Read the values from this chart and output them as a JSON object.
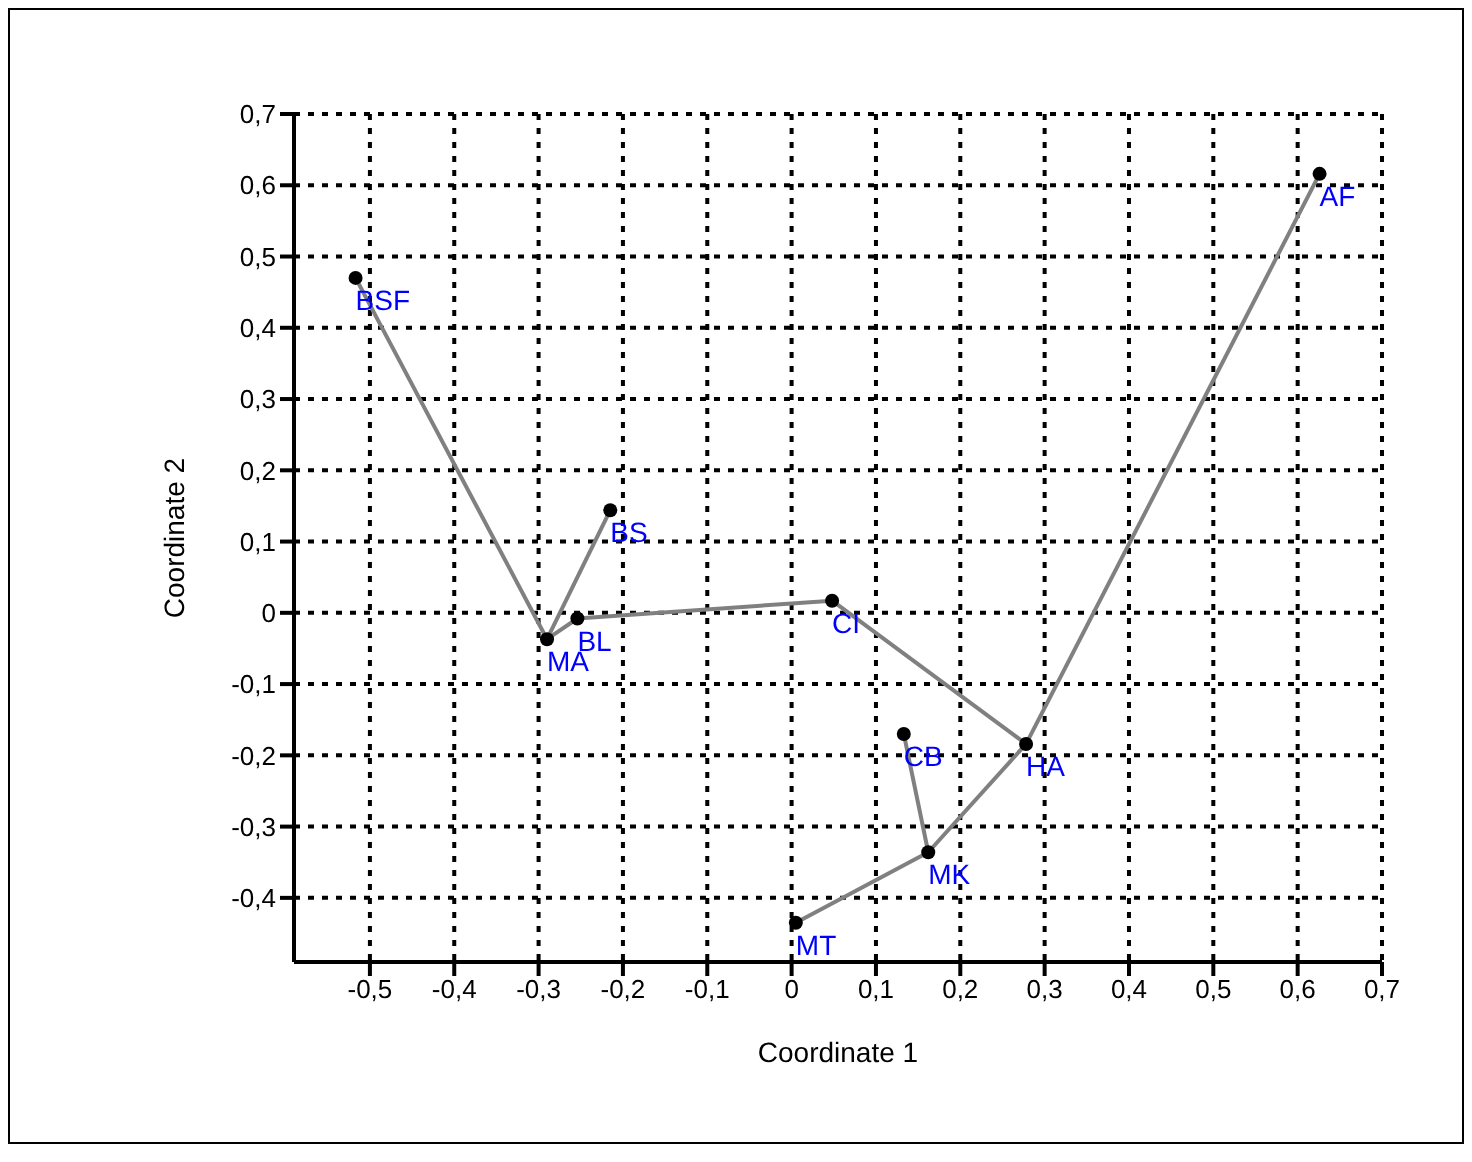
{
  "chart_data": {
    "type": "scatter",
    "xlabel": "Coordinate 1",
    "ylabel": "Coordinate 2",
    "xlim": [
      -0.59,
      0.7
    ],
    "ylim": [
      -0.49,
      0.7
    ],
    "xticks": [
      {
        "value": -0.5,
        "label": "-0,5"
      },
      {
        "value": -0.4,
        "label": "-0,4"
      },
      {
        "value": -0.3,
        "label": "-0,3"
      },
      {
        "value": -0.2,
        "label": "-0,2"
      },
      {
        "value": -0.1,
        "label": "-0,1"
      },
      {
        "value": 0,
        "label": "0"
      },
      {
        "value": 0.1,
        "label": "0,1"
      },
      {
        "value": 0.2,
        "label": "0,2"
      },
      {
        "value": 0.3,
        "label": "0,3"
      },
      {
        "value": 0.4,
        "label": "0,4"
      },
      {
        "value": 0.5,
        "label": "0,5"
      },
      {
        "value": 0.6,
        "label": "0,6"
      },
      {
        "value": 0.7,
        "label": "0,7"
      }
    ],
    "yticks": [
      {
        "value": -0.4,
        "label": "-0,4"
      },
      {
        "value": -0.3,
        "label": "-0,3"
      },
      {
        "value": -0.2,
        "label": "-0,2"
      },
      {
        "value": -0.1,
        "label": "-0,1"
      },
      {
        "value": 0,
        "label": "0"
      },
      {
        "value": 0.1,
        "label": "0,1"
      },
      {
        "value": 0.2,
        "label": "0,2"
      },
      {
        "value": 0.3,
        "label": "0,3"
      },
      {
        "value": 0.4,
        "label": "0,4"
      },
      {
        "value": 0.5,
        "label": "0,5"
      },
      {
        "value": 0.6,
        "label": "0,6"
      },
      {
        "value": 0.7,
        "label": "0,7"
      }
    ],
    "grid": true,
    "series": [
      {
        "type": "line",
        "color": "#808080",
        "x": [
          -0.517,
          -0.29
        ],
        "values": [
          0.47,
          -0.037
        ]
      },
      {
        "type": "line",
        "color": "#808080",
        "x": [
          -0.29,
          -0.215
        ],
        "values": [
          -0.037,
          0.144
        ]
      },
      {
        "type": "line",
        "color": "#808080",
        "x": [
          -0.29,
          -0.254
        ],
        "values": [
          -0.037,
          -0.008
        ]
      },
      {
        "type": "line",
        "color": "#808080",
        "x": [
          -0.254,
          0.048
        ],
        "values": [
          -0.008,
          0.017
        ]
      },
      {
        "type": "line",
        "color": "#808080",
        "x": [
          0.048,
          0.278
        ],
        "values": [
          0.017,
          -0.184
        ]
      },
      {
        "type": "line",
        "color": "#808080",
        "x": [
          0.278,
          0.626
        ],
        "values": [
          -0.184,
          0.616
        ]
      },
      {
        "type": "line",
        "color": "#808080",
        "x": [
          0.278,
          0.162
        ],
        "values": [
          -0.184,
          -0.336
        ]
      },
      {
        "type": "line",
        "color": "#808080",
        "x": [
          0.162,
          0.133
        ],
        "values": [
          -0.336,
          -0.17
        ]
      },
      {
        "type": "line",
        "color": "#808080",
        "x": [
          0.162,
          0.005
        ],
        "values": [
          -0.336,
          -0.435
        ]
      },
      {
        "color": "#000000",
        "marker": "circle",
        "x": [
          -0.517,
          -0.215,
          -0.29,
          -0.254,
          0.048,
          0.278,
          0.133,
          0.162,
          0.005,
          0.626
        ],
        "values": [
          0.47,
          0.144,
          -0.037,
          -0.008,
          0.017,
          -0.184,
          -0.17,
          -0.336,
          -0.435,
          0.616
        ]
      }
    ],
    "annotations": [
      {
        "text": "BSF",
        "x": -0.517,
        "y": 0.47
      },
      {
        "text": "BS",
        "x": -0.215,
        "y": 0.144
      },
      {
        "text": "MA",
        "x": -0.29,
        "y": -0.037
      },
      {
        "text": "BL",
        "x": -0.254,
        "y": -0.008
      },
      {
        "text": "CI",
        "x": 0.048,
        "y": 0.017
      },
      {
        "text": "HA",
        "x": 0.278,
        "y": -0.184
      },
      {
        "text": "CB",
        "x": 0.133,
        "y": -0.17
      },
      {
        "text": "MK",
        "x": 0.162,
        "y": -0.336
      },
      {
        "text": "MT",
        "x": 0.005,
        "y": -0.435
      },
      {
        "text": "AF",
        "x": 0.626,
        "y": 0.616
      }
    ]
  }
}
